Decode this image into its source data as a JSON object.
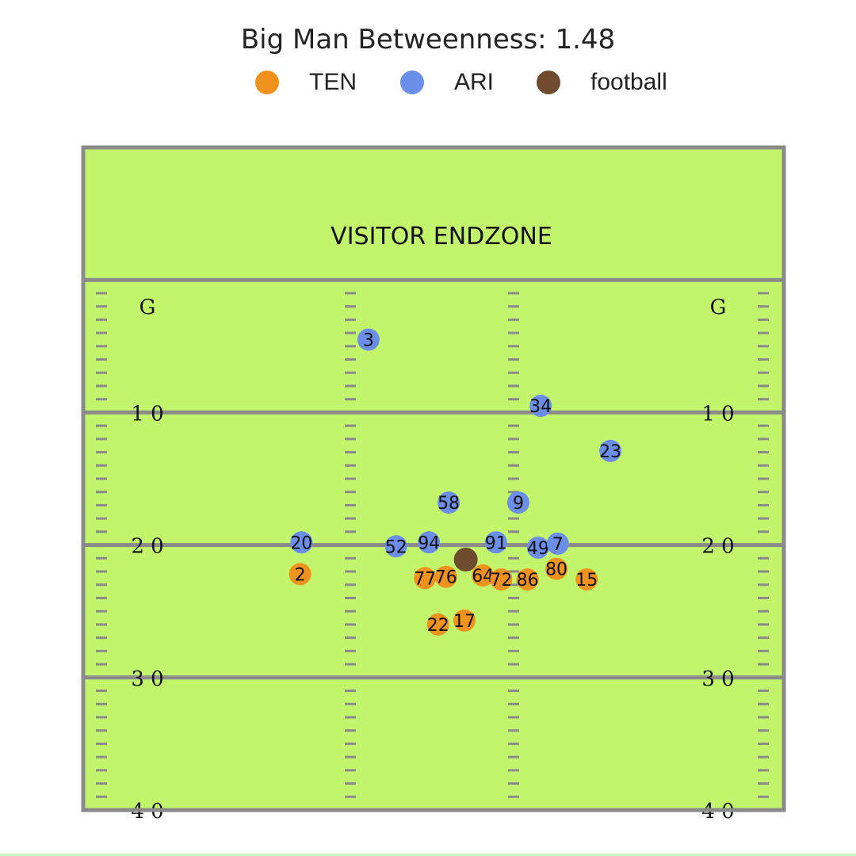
{
  "chart_data": {
    "type": "scatter",
    "title": "Big Man Betweenness: 1.48",
    "legend": {
      "placement": "top-center",
      "entries": [
        {
          "name": "TEN",
          "color": "#f0921e"
        },
        {
          "name": "ARI",
          "color": "#6b8ee8"
        },
        {
          "name": "football",
          "color": "#6e4b2f"
        }
      ]
    },
    "field": {
      "endzone_label": "VISITOR ENDZONE",
      "field_color": "#c2f46c",
      "line_color": "#8a8a8a",
      "yard_labels": [
        "G",
        "1 0",
        "2 0",
        "3 0",
        "4 0"
      ],
      "yard_values": [
        0,
        10,
        20,
        30,
        40
      ],
      "y_range": [
        -10,
        40
      ],
      "x_range": [
        0,
        53.3
      ]
    },
    "series": [
      {
        "name": "TEN",
        "color": "#f0921e",
        "points": [
          {
            "label": "2",
            "x": 16.5,
            "y": 22.2
          },
          {
            "label": "77",
            "x": 26.0,
            "y": 22.5
          },
          {
            "label": "76",
            "x": 27.6,
            "y": 22.4
          },
          {
            "label": "64",
            "x": 30.4,
            "y": 22.3
          },
          {
            "label": "72",
            "x": 31.8,
            "y": 22.6
          },
          {
            "label": "86",
            "x": 33.8,
            "y": 22.6
          },
          {
            "label": "80",
            "x": 36.0,
            "y": 21.8
          },
          {
            "label": "15",
            "x": 38.3,
            "y": 22.6
          },
          {
            "label": "22",
            "x": 27.0,
            "y": 26.0
          },
          {
            "label": "17",
            "x": 29.0,
            "y": 25.7
          }
        ]
      },
      {
        "name": "ARI",
        "color": "#6b8ee8",
        "points": [
          {
            "label": "3",
            "x": 21.7,
            "y": 4.5
          },
          {
            "label": "34",
            "x": 34.8,
            "y": 9.5
          },
          {
            "label": "23",
            "x": 40.1,
            "y": 12.9
          },
          {
            "label": "58",
            "x": 27.8,
            "y": 16.8
          },
          {
            "label": "9",
            "x": 33.1,
            "y": 16.8
          },
          {
            "label": "20",
            "x": 16.6,
            "y": 19.8
          },
          {
            "label": "94",
            "x": 26.3,
            "y": 19.8
          },
          {
            "label": "52",
            "x": 23.8,
            "y": 20.1
          },
          {
            "label": "91",
            "x": 31.4,
            "y": 19.8
          },
          {
            "label": "49",
            "x": 34.6,
            "y": 20.2
          },
          {
            "label": "7",
            "x": 36.1,
            "y": 19.9
          }
        ]
      },
      {
        "name": "football",
        "color": "#6e4b2f",
        "points": [
          {
            "label": "",
            "x": 29.1,
            "y": 21.1
          }
        ]
      }
    ]
  }
}
